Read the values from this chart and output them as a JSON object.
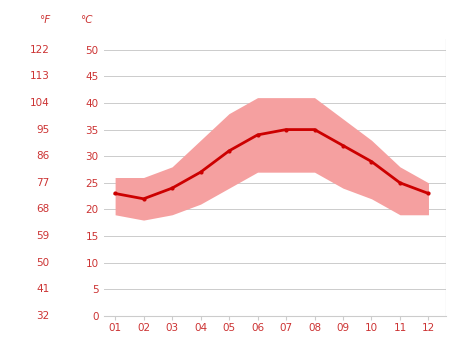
{
  "months": [
    1,
    2,
    3,
    4,
    5,
    6,
    7,
    8,
    9,
    10,
    11,
    12
  ],
  "month_labels": [
    "01",
    "02",
    "03",
    "04",
    "05",
    "06",
    "07",
    "08",
    "09",
    "10",
    "11",
    "12"
  ],
  "avg_temp": [
    23,
    22,
    24,
    27,
    31,
    34,
    35,
    35,
    32,
    29,
    25,
    23
  ],
  "max_temp": [
    26,
    26,
    28,
    33,
    38,
    41,
    41,
    41,
    37,
    33,
    28,
    25
  ],
  "min_temp": [
    19,
    18,
    19,
    21,
    24,
    27,
    27,
    27,
    24,
    22,
    19,
    19
  ],
  "y_ticks_c": [
    0,
    5,
    10,
    15,
    20,
    25,
    30,
    35,
    40,
    45,
    50
  ],
  "y_ticks_f": [
    32,
    41,
    50,
    59,
    68,
    77,
    86,
    95,
    104,
    113,
    122
  ],
  "ylim_c": [
    0,
    52
  ],
  "xlim": [
    0.62,
    12.6
  ],
  "line_color": "#cc0000",
  "band_color": "#f5a0a0",
  "grid_color": "#cccccc",
  "tick_color": "#cc3333",
  "bg_color": "#ffffff",
  "label_f": "°F",
  "label_c": "°C",
  "right_line_color": "#aaaaaa"
}
